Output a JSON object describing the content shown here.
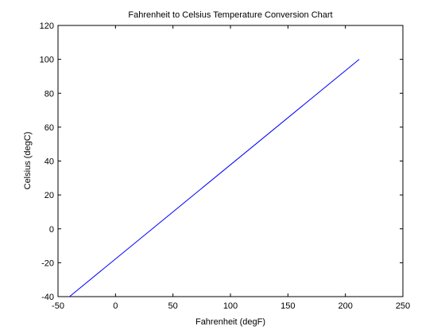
{
  "chart_data": {
    "type": "line",
    "title": "Fahrenheit to Celsius Temperature Conversion Chart",
    "xlabel": "Fahrenheit (degF)",
    "ylabel": "Celsius (degC)",
    "xlim": [
      -50,
      250
    ],
    "ylim": [
      -40,
      120
    ],
    "xticks": [
      -50,
      0,
      50,
      100,
      150,
      200,
      250
    ],
    "yticks": [
      -40,
      -20,
      0,
      20,
      40,
      60,
      80,
      100,
      120
    ],
    "grid": false,
    "series": [
      {
        "color": "#0000ff",
        "x": [
          -40,
          32,
          122,
          212
        ],
        "y": [
          -40,
          0,
          50,
          100
        ]
      }
    ]
  }
}
